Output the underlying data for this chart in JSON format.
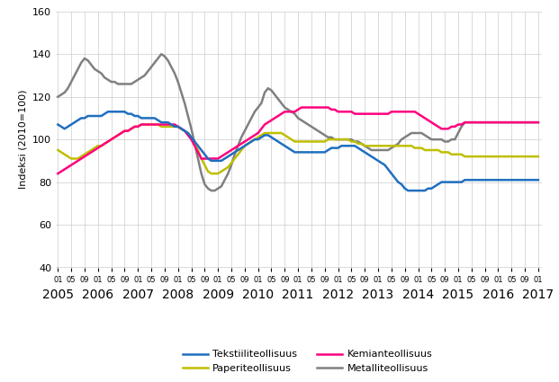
{
  "ylabel": "Indeksi (2010=100)",
  "ylim": [
    40,
    160
  ],
  "yticks": [
    40,
    60,
    80,
    100,
    120,
    140,
    160
  ],
  "colors": {
    "Tekstiiliteollisuus": "#1F6FBF",
    "Paperiteollisuus": "#BFBF00",
    "Kemianteollisuus": "#FF007F",
    "Metalliteollisuus": "#808080"
  },
  "series": {
    "Tekstiiliteollisuus": [
      107,
      106,
      105,
      106,
      107,
      108,
      109,
      110,
      110,
      111,
      111,
      111,
      111,
      111,
      112,
      113,
      113,
      113,
      113,
      113,
      113,
      112,
      112,
      111,
      111,
      110,
      110,
      110,
      110,
      110,
      109,
      108,
      108,
      108,
      107,
      106,
      106,
      105,
      104,
      103,
      101,
      99,
      97,
      95,
      93,
      91,
      90,
      90,
      90,
      90,
      91,
      92,
      93,
      94,
      95,
      96,
      97,
      98,
      99,
      100,
      100,
      101,
      102,
      102,
      101,
      100,
      99,
      98,
      97,
      96,
      95,
      94,
      94,
      94,
      94,
      94,
      94,
      94,
      94,
      94,
      94,
      95,
      96,
      96,
      96,
      97,
      97,
      97,
      97,
      97,
      96,
      95,
      94,
      93,
      92,
      91,
      90,
      89,
      88,
      86,
      84,
      82,
      80,
      79,
      77,
      76,
      76,
      76,
      76,
      76,
      76,
      77,
      77,
      78,
      79,
      80,
      80,
      80,
      80,
      80,
      80,
      80,
      81,
      81,
      81,
      81,
      81,
      81,
      81,
      81,
      81,
      81,
      81,
      81,
      81,
      81,
      81,
      81,
      81,
      81,
      81,
      81,
      81,
      81,
      81
    ],
    "Paperiteollisuus": [
      95,
      94,
      93,
      92,
      91,
      91,
      91,
      92,
      93,
      94,
      95,
      96,
      97,
      97,
      98,
      99,
      100,
      101,
      102,
      103,
      104,
      104,
      105,
      106,
      106,
      107,
      107,
      107,
      107,
      107,
      107,
      106,
      106,
      106,
      106,
      106,
      106,
      105,
      104,
      103,
      101,
      98,
      95,
      91,
      88,
      85,
      84,
      84,
      84,
      85,
      86,
      87,
      89,
      91,
      93,
      95,
      97,
      98,
      99,
      100,
      101,
      102,
      103,
      103,
      103,
      103,
      103,
      103,
      102,
      101,
      100,
      99,
      99,
      99,
      99,
      99,
      99,
      99,
      99,
      99,
      99,
      100,
      100,
      100,
      100,
      100,
      100,
      100,
      99,
      99,
      98,
      98,
      97,
      97,
      97,
      97,
      97,
      97,
      97,
      97,
      97,
      97,
      97,
      97,
      97,
      97,
      97,
      96,
      96,
      96,
      95,
      95,
      95,
      95,
      95,
      94,
      94,
      94,
      93,
      93,
      93,
      93,
      92,
      92,
      92,
      92,
      92,
      92,
      92,
      92,
      92,
      92,
      92,
      92,
      92,
      92,
      92,
      92,
      92,
      92,
      92,
      92,
      92,
      92,
      92
    ],
    "Kemianteollisuus": [
      84,
      85,
      86,
      87,
      88,
      89,
      90,
      91,
      92,
      93,
      94,
      95,
      96,
      97,
      98,
      99,
      100,
      101,
      102,
      103,
      104,
      104,
      105,
      106,
      106,
      107,
      107,
      107,
      107,
      107,
      107,
      107,
      107,
      107,
      107,
      107,
      106,
      105,
      104,
      102,
      100,
      97,
      94,
      91,
      91,
      91,
      91,
      91,
      91,
      92,
      93,
      94,
      95,
      96,
      97,
      98,
      99,
      100,
      101,
      102,
      103,
      105,
      107,
      108,
      109,
      110,
      111,
      112,
      113,
      113,
      113,
      113,
      114,
      115,
      115,
      115,
      115,
      115,
      115,
      115,
      115,
      115,
      114,
      114,
      113,
      113,
      113,
      113,
      113,
      112,
      112,
      112,
      112,
      112,
      112,
      112,
      112,
      112,
      112,
      112,
      113,
      113,
      113,
      113,
      113,
      113,
      113,
      113,
      112,
      111,
      110,
      109,
      108,
      107,
      106,
      105,
      105,
      105,
      106,
      106,
      107,
      107,
      108,
      108,
      108,
      108,
      108,
      108,
      108,
      108,
      108,
      108,
      108,
      108,
      108,
      108,
      108,
      108,
      108,
      108,
      108,
      108,
      108,
      108,
      108
    ],
    "Metalliteollisuus": [
      120,
      121,
      122,
      124,
      127,
      130,
      133,
      136,
      138,
      137,
      135,
      133,
      132,
      131,
      129,
      128,
      127,
      127,
      126,
      126,
      126,
      126,
      126,
      127,
      128,
      129,
      130,
      132,
      134,
      136,
      138,
      140,
      139,
      137,
      134,
      131,
      127,
      122,
      117,
      111,
      105,
      98,
      91,
      84,
      79,
      77,
      76,
      76,
      77,
      78,
      81,
      84,
      88,
      93,
      97,
      101,
      104,
      107,
      110,
      113,
      115,
      117,
      122,
      124,
      123,
      121,
      119,
      117,
      115,
      114,
      113,
      112,
      110,
      109,
      108,
      107,
      106,
      105,
      104,
      103,
      102,
      101,
      101,
      100,
      100,
      100,
      100,
      100,
      100,
      99,
      99,
      98,
      97,
      96,
      95,
      95,
      95,
      95,
      95,
      95,
      96,
      97,
      98,
      100,
      101,
      102,
      103,
      103,
      103,
      103,
      102,
      101,
      100,
      100,
      100,
      100,
      99,
      99,
      100,
      100,
      103,
      106,
      108,
      108,
      108,
      108,
      108,
      108,
      108,
      108,
      108,
      108,
      108,
      108,
      108,
      108,
      108,
      108,
      108,
      108,
      108,
      108,
      108,
      108,
      108
    ]
  },
  "start_year": 2005,
  "start_month": 1
}
